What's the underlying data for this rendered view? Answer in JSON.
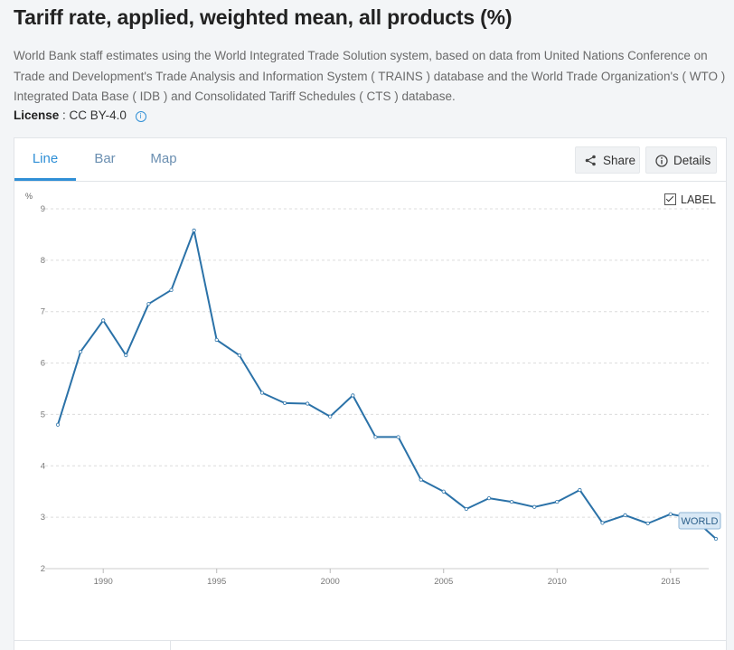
{
  "header": {
    "title": "Tariff rate, applied, weighted mean, all products (%)",
    "description": "World Bank staff estimates using the World Integrated Trade Solution system, based on data from United Nations Conference on Trade and Development's Trade Analysis and Information System ( TRAINS ) database and the World Trade Organization's ( WTO ) Integrated Data Base ( IDB ) and Consolidated Tariff Schedules ( CTS ) database.",
    "license_label": "License",
    "license_value": ": CC BY-4.0"
  },
  "tabs": [
    {
      "label": "Line",
      "active": true
    },
    {
      "label": "Bar",
      "active": false
    },
    {
      "label": "Map",
      "active": false
    }
  ],
  "toolbar": {
    "share_label": "Share",
    "details_label": "Details"
  },
  "label_toggle": {
    "text": "LABEL",
    "checked": true
  },
  "colors": {
    "accent": "#2f8fd6",
    "line": "#2b72a8",
    "grid": "#dcdcdc"
  },
  "chart_data": {
    "type": "line",
    "ylabel": "%",
    "ylim": [
      2,
      9
    ],
    "yticks": [
      2,
      3,
      4,
      5,
      6,
      7,
      8,
      9
    ],
    "xlim": [
      1988,
      2017
    ],
    "xticks": [
      1990,
      1995,
      2000,
      2005,
      2010,
      2015
    ],
    "grid": true,
    "series": [
      {
        "name": "WORLD",
        "x": [
          1988,
          1989,
          1990,
          1991,
          1992,
          1993,
          1994,
          1995,
          1996,
          1997,
          1998,
          1999,
          2000,
          2001,
          2002,
          2003,
          2004,
          2005,
          2006,
          2007,
          2008,
          2009,
          2010,
          2011,
          2012,
          2013,
          2014,
          2015,
          2016,
          2017
        ],
        "values": [
          4.8,
          6.22,
          6.83,
          6.15,
          7.15,
          7.42,
          8.58,
          6.45,
          6.15,
          5.42,
          5.22,
          5.21,
          4.96,
          5.37,
          4.56,
          4.56,
          3.73,
          3.5,
          3.16,
          3.37,
          3.3,
          3.2,
          3.3,
          3.53,
          2.89,
          3.04,
          2.88,
          3.06,
          2.98,
          2.58
        ]
      }
    ]
  }
}
